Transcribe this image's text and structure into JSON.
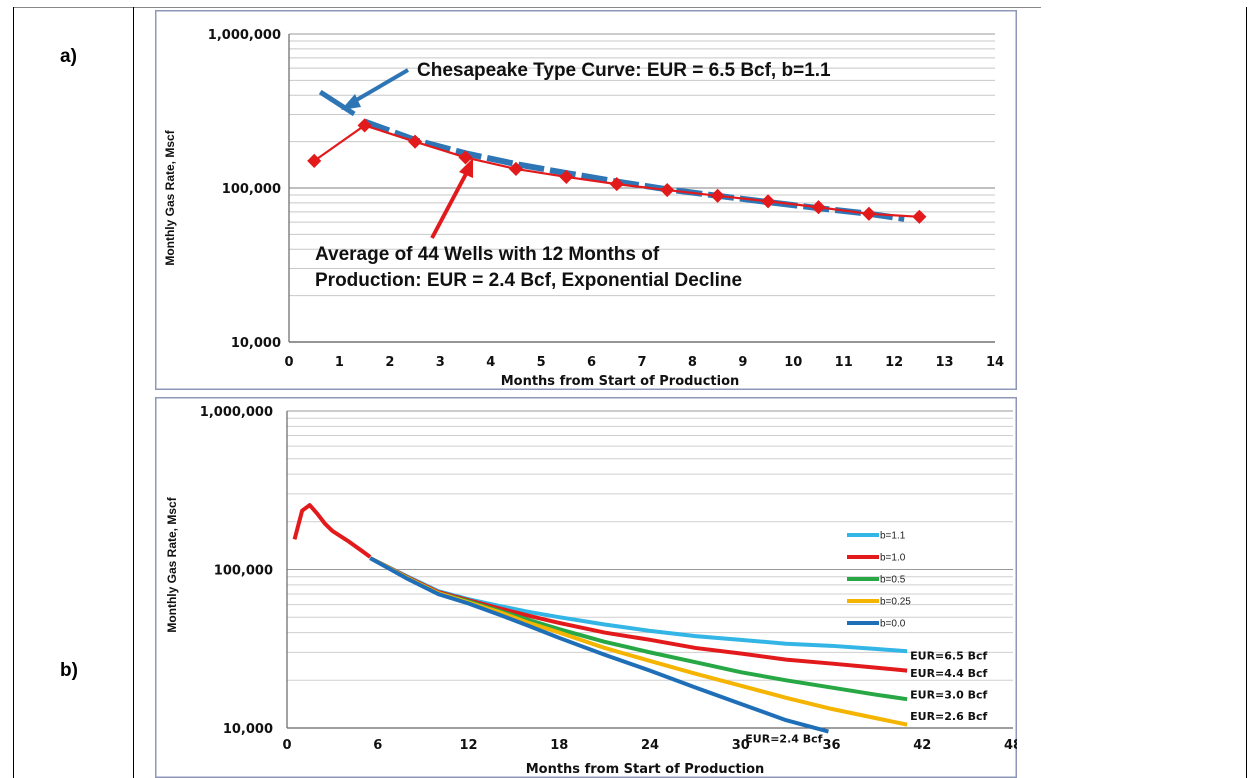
{
  "labels": {
    "a": "a)",
    "b": "b)"
  },
  "chart_data": [
    {
      "type": "line",
      "panel": "a",
      "xlabel": "Months from Start of Production",
      "ylabel": "Monthly Gas Rate, Mscf",
      "yscale": "log",
      "xlim": [
        0,
        14
      ],
      "ylim": [
        10000,
        1000000
      ],
      "x_ticks": [
        "0",
        "1",
        "2",
        "3",
        "4",
        "5",
        "6",
        "7",
        "8",
        "9",
        "10",
        "11",
        "12",
        "13",
        "14"
      ],
      "y_ticks": [
        "10,000",
        "100,000",
        "1,000,000"
      ],
      "series": [
        {
          "color": "#2e75b6",
          "x": [
            0.5,
            1.5,
            2.5,
            3.5,
            4.5,
            5.5,
            6.5,
            7.5,
            8.5,
            9.5,
            10.5,
            11.5,
            12.2
          ],
          "y": [
            420000,
            270000,
            205000,
            168000,
            143000,
            125000,
            110000,
            98000,
            89000,
            81000,
            74000,
            68000,
            63000
          ]
        },
        {
          "color": "#e31a1c",
          "x": [
            0.5,
            1.5,
            2.5,
            3.5,
            4.5,
            5.5,
            6.5,
            7.5,
            8.5,
            9.5,
            10.5,
            11.5,
            12.5
          ],
          "y": [
            150000,
            255000,
            200000,
            158000,
            133000,
            118000,
            106000,
            97000,
            89000,
            82000,
            75000,
            68000,
            65000
          ]
        }
      ],
      "annotations": [
        "Chesapeake Type Curve:  EUR = 6.5 Bcf, b=1.1",
        "Average of 44 Wells with 12 Months of",
        "Production:  EUR = 2.4 Bcf, Exponential Decline"
      ]
    },
    {
      "type": "line",
      "panel": "b",
      "xlabel": "Months from Start of Production",
      "ylabel": "Monthly Gas Rate, Mscf",
      "yscale": "log",
      "xlim": [
        0,
        48
      ],
      "ylim": [
        10000,
        1000000
      ],
      "x_ticks": [
        "0",
        "6",
        "12",
        "18",
        "24",
        "30",
        "36",
        "42",
        "48"
      ],
      "y_ticks": [
        "10,000",
        "100,000",
        "1,000,000"
      ],
      "initial": {
        "color": "#e31a1c",
        "x": [
          0.5,
          1,
          1.5,
          2,
          2.5,
          3,
          4,
          5,
          5.5
        ],
        "y": [
          155000,
          235000,
          255000,
          225000,
          195000,
          175000,
          152000,
          130000,
          120000
        ]
      },
      "series": [
        {
          "name": "b=1.1",
          "color": "#33b5e5",
          "x": [
            5.5,
            8,
            10,
            12,
            14,
            16,
            18,
            21,
            24,
            27,
            30,
            33,
            36,
            39,
            41
          ],
          "y": [
            118000,
            90000,
            73000,
            65000,
            59000,
            54000,
            50000,
            45000,
            41000,
            38000,
            36000,
            34000,
            33000,
            31500,
            30500
          ]
        },
        {
          "name": "b=1.0",
          "color": "#e31a1c",
          "x": [
            5.5,
            8,
            10,
            12,
            14,
            16,
            18,
            21,
            24,
            27,
            30,
            33,
            36,
            39,
            41
          ],
          "y": [
            118000,
            89000,
            72000,
            64000,
            57000,
            51000,
            46000,
            40000,
            36000,
            32000,
            29500,
            27000,
            25500,
            24000,
            23000
          ]
        },
        {
          "name": "b=0.5",
          "color": "#27a844",
          "x": [
            5.5,
            8,
            10,
            12,
            14,
            16,
            18,
            21,
            24,
            27,
            30,
            33,
            36,
            39,
            41
          ],
          "y": [
            118000,
            88000,
            71000,
            63000,
            55000,
            48000,
            42000,
            35000,
            30000,
            26000,
            22500,
            20000,
            18000,
            16200,
            15200
          ]
        },
        {
          "name": "b=0.25",
          "color": "#f4b400",
          "x": [
            5.5,
            8,
            10,
            12,
            14,
            16,
            18,
            21,
            24,
            27,
            30,
            33,
            36,
            39,
            41
          ],
          "y": [
            118000,
            88000,
            71000,
            62000,
            54000,
            46000,
            40000,
            32000,
            26500,
            22000,
            18500,
            15500,
            13200,
            11500,
            10500
          ]
        },
        {
          "name": "b=0.0",
          "color": "#1f6fb8",
          "x": [
            5.5,
            8,
            10,
            12,
            14,
            16,
            18,
            21,
            24,
            27,
            30,
            33,
            35.8
          ],
          "y": [
            118000,
            87000,
            70000,
            61000,
            52000,
            44000,
            37000,
            29000,
            23000,
            18000,
            14200,
            11200,
            9500
          ]
        }
      ],
      "eur_labels": [
        {
          "text": "EUR=6.5 Bcf",
          "x": 41.2,
          "y": 27000
        },
        {
          "text": "EUR=4.4 Bcf",
          "x": 41.2,
          "y": 21000
        },
        {
          "text": "EUR=3.0 Bcf",
          "x": 41.2,
          "y": 15300
        },
        {
          "text": "EUR=2.6 Bcf",
          "x": 41.2,
          "y": 11200
        },
        {
          "text": "EUR=2.4 Bcf",
          "x": 30.3,
          "y": 8100
        }
      ],
      "legend_position": "right"
    }
  ]
}
